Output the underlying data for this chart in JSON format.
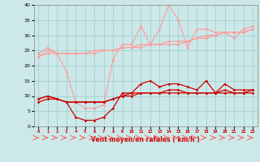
{
  "x": [
    0,
    1,
    2,
    3,
    4,
    5,
    6,
    7,
    8,
    9,
    10,
    11,
    12,
    13,
    14,
    15,
    16,
    17,
    18,
    19,
    20,
    21,
    22,
    23
  ],
  "line1": [
    24,
    26,
    24,
    18,
    8,
    6,
    6,
    7,
    22,
    27,
    27,
    33,
    27,
    32,
    40,
    35,
    26,
    32,
    32,
    31,
    31,
    29,
    32,
    33
  ],
  "line2": [
    23,
    25,
    24,
    24,
    24,
    24,
    24,
    25,
    25,
    26,
    26,
    27,
    27,
    27,
    28,
    28,
    28,
    29,
    30,
    30,
    31,
    31,
    31,
    32
  ],
  "line3": [
    23,
    24,
    24,
    24,
    24,
    24,
    25,
    25,
    25,
    26,
    26,
    26,
    27,
    27,
    27,
    27,
    28,
    29,
    29,
    30,
    31,
    31,
    31,
    32
  ],
  "line4": [
    9,
    10,
    9,
    8,
    3,
    2,
    2,
    3,
    6,
    11,
    11,
    14,
    15,
    13,
    14,
    14,
    13,
    12,
    15,
    11,
    14,
    12,
    12,
    12
  ],
  "line5": [
    9,
    10,
    9,
    8,
    8,
    8,
    8,
    8,
    9,
    10,
    11,
    11,
    11,
    11,
    12,
    12,
    11,
    11,
    11,
    11,
    12,
    11,
    11,
    12
  ],
  "line6": [
    8,
    9,
    9,
    8,
    8,
    8,
    8,
    8,
    9,
    10,
    10,
    11,
    11,
    11,
    11,
    11,
    11,
    11,
    11,
    11,
    11,
    11,
    11,
    11
  ],
  "light_pink": "#FF9999",
  "dark_red": "#CC0000",
  "medium_red": "#FF5555",
  "bg_color": "#CCE8E8",
  "grid_color": "#99CCCC",
  "xlabel": "Vent moyen/en rafales ( km/h )",
  "ylim": [
    0,
    40
  ],
  "xlim_min": -0.5,
  "xlim_max": 23.5,
  "yticks": [
    0,
    5,
    10,
    15,
    20,
    25,
    30,
    35,
    40
  ],
  "xticks": [
    0,
    1,
    2,
    3,
    4,
    5,
    6,
    7,
    8,
    9,
    10,
    11,
    12,
    13,
    14,
    15,
    16,
    17,
    18,
    19,
    20,
    21,
    22,
    23
  ]
}
